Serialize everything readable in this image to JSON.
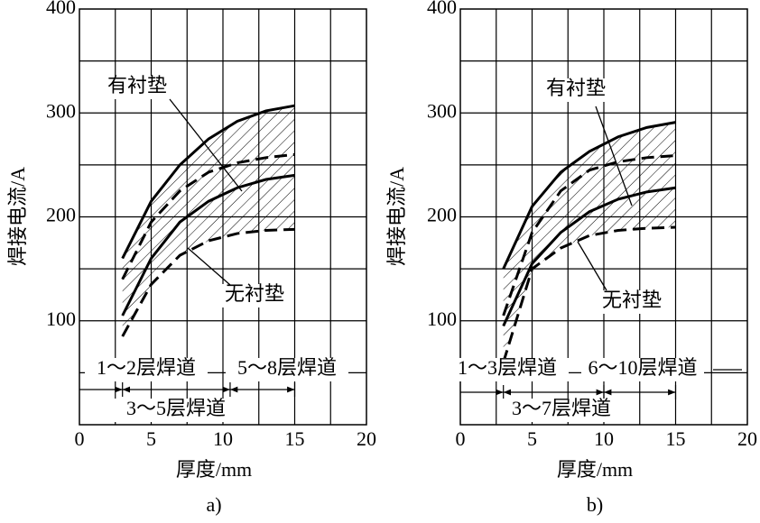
{
  "chart_data": [
    {
      "type": "line",
      "sublabel": "a)",
      "xlabel": "厚度/mm",
      "ylabel": "焊接电流/A",
      "x": [
        3,
        5,
        7,
        9,
        11,
        13,
        15
      ],
      "series": [
        {
          "color": "#000000",
          "style": "solid",
          "values": [
            160,
            215,
            250,
            275,
            292,
            302,
            307
          ]
        },
        {
          "color": "#000000",
          "style": "dashed",
          "values": [
            140,
            195,
            225,
            243,
            252,
            257,
            260
          ]
        },
        {
          "color": "#000000",
          "style": "solid",
          "values": [
            105,
            160,
            195,
            215,
            228,
            236,
            240
          ]
        },
        {
          "color": "#000000",
          "style": "dashed",
          "values": [
            85,
            135,
            163,
            177,
            184,
            187,
            188
          ]
        }
      ],
      "xlim": [
        0,
        20
      ],
      "ylim": [
        0,
        400
      ],
      "xticks": [
        0,
        5,
        10,
        15,
        20
      ],
      "yticks": [
        100,
        200,
        300,
        400
      ],
      "xgrid": [
        2.5,
        5,
        7.5,
        10,
        12.5,
        15,
        17.5
      ],
      "ygrid": [
        50,
        100,
        150,
        200,
        250,
        300,
        350
      ],
      "curve_labels": [
        "有衬垫",
        "无衬垫"
      ],
      "pass_labels": [
        "1～2层焊道",
        "5～8层焊道",
        "3～5层焊道"
      ]
    },
    {
      "type": "line",
      "sublabel": "b)",
      "xlabel": "厚度/mm",
      "ylabel": "焊接电流/A",
      "x": [
        3,
        5,
        7,
        9,
        11,
        13,
        15
      ],
      "series": [
        {
          "color": "#000000",
          "style": "solid",
          "values": [
            150,
            210,
            243,
            263,
            277,
            286,
            291
          ]
        },
        {
          "color": "#000000",
          "style": "dashed",
          "values": [
            105,
            185,
            225,
            245,
            253,
            257,
            259
          ]
        },
        {
          "color": "#000000",
          "style": "solid",
          "values": [
            95,
            155,
            185,
            205,
            217,
            224,
            228
          ]
        },
        {
          "color": "#000000",
          "style": "dashed",
          "values": [
            60,
            150,
            170,
            182,
            187,
            189,
            190
          ]
        }
      ],
      "xlim": [
        0,
        20
      ],
      "ylim": [
        0,
        400
      ],
      "xticks": [
        0,
        5,
        10,
        15,
        20
      ],
      "yticks": [
        100,
        200,
        300,
        400
      ],
      "xgrid": [
        2.5,
        5,
        7.5,
        10,
        12.5,
        15,
        17.5
      ],
      "ygrid": [
        50,
        100,
        150,
        200,
        250,
        300,
        350
      ],
      "curve_labels": [
        "有衬垫",
        "无衬垫"
      ],
      "pass_labels": [
        "1～3层焊道",
        "6～10层焊道",
        "3～7层焊道"
      ]
    }
  ]
}
